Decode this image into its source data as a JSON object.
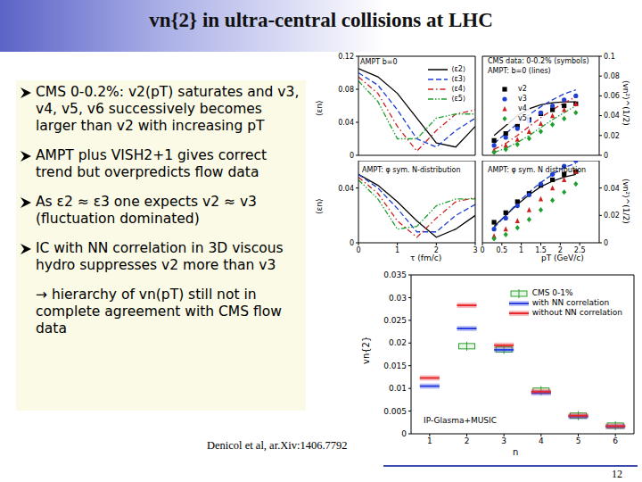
{
  "title": "vn{2} in ultra-central collisions at LHC",
  "bullets": [
    "CMS 0-0.2%: v2(pT) saturates and v3, v4, v5, v6 successively becomes larger than v2 with increasing pT",
    "AMPT plus VISH2+1 gives correct trend but overpredicts flow data",
    "As ε2 ≈ ε3 one expects v2 ≈ v3 (fluctuation dominated)",
    "IC with NN correlation in 3D viscous hydro suppresses v2 more than v3"
  ],
  "conclusion": "→ hierarchy of vn(pT) still not in complete agreement with CMS flow data",
  "citation": "Denicol et al, ar.Xiv:1406.7792",
  "page": "12",
  "chart_data": [
    {
      "type": "line",
      "annotations": [
        "AMPT b=0"
      ],
      "y_label": "⟨εn⟩",
      "x": [
        0,
        0.5,
        1,
        1.5,
        2,
        2.5,
        3
      ],
      "xlim": [
        0,
        3
      ],
      "xticks": [
        0,
        1,
        2,
        3
      ],
      "ylim": [
        0,
        0.12
      ],
      "yticks": [
        0,
        0.04,
        0.08,
        0.12
      ],
      "tick_labels": "y",
      "legend": "upper right",
      "series": [
        {
          "name": "⟨ε2⟩",
          "color": "#000000",
          "line_style": "solid",
          "values": [
            0.105,
            0.095,
            0.075,
            0.045,
            0.015,
            0.01,
            0.035
          ]
        },
        {
          "name": "⟨ε3⟩",
          "color": "#1f3fd0",
          "line_style": "dashed",
          "values": [
            0.1,
            0.085,
            0.055,
            0.02,
            0.01,
            0.03,
            0.045
          ]
        },
        {
          "name": "⟨ε4⟩",
          "color": "#d01f1f",
          "line_style": "dashdot",
          "values": [
            0.095,
            0.075,
            0.035,
            0.005,
            0.03,
            0.05,
            0.055
          ]
        },
        {
          "name": "⟨ε5⟩",
          "color": "#1f9f2f",
          "line_style": "dashdotdot",
          "values": [
            0.09,
            0.065,
            0.02,
            0.02,
            0.045,
            0.05,
            0.05
          ]
        }
      ]
    },
    {
      "type": "line",
      "annotations": [
        "CMS data: 0-0.2% (symbols)",
        "AMPT: b=0 (lines)"
      ],
      "y_label": "⟨vn²⟩^(1/2)",
      "x": [
        0.3,
        0.6,
        0.9,
        1.2,
        1.5,
        1.8,
        2.1,
        2.4
      ],
      "xlim": [
        0,
        3
      ],
      "xticks": [
        0,
        0.5,
        1,
        1.5,
        2,
        2.5
      ],
      "ylim": [
        0,
        0.1
      ],
      "yticks": [
        0,
        0.02,
        0.04,
        0.06,
        0.08,
        0.1
      ],
      "tick_labels": "y",
      "legend": "upper left",
      "series": [
        {
          "name": "v2",
          "type": "scatter",
          "marker": "square",
          "color": "#000000",
          "values": [
            0.015,
            0.022,
            0.03,
            0.036,
            0.042,
            0.046,
            0.05,
            0.052
          ]
        },
        {
          "name": "v3",
          "type": "scatter",
          "marker": "circle",
          "color": "#1f3fd0",
          "values": [
            0.01,
            0.018,
            0.027,
            0.035,
            0.043,
            0.05,
            0.056,
            0.06
          ]
        },
        {
          "name": "v4",
          "type": "scatter",
          "marker": "triangle",
          "color": "#d01f1f",
          "values": [
            0.005,
            0.01,
            0.016,
            0.024,
            0.032,
            0.04,
            0.046,
            0.052
          ]
        },
        {
          "name": "v5",
          "type": "scatter",
          "marker": "diamond",
          "color": "#1f9f2f",
          "values": [
            0.003,
            0.006,
            0.011,
            0.017,
            0.024,
            0.031,
            0.037,
            0.043
          ]
        },
        {
          "type": "line",
          "color": "#000000",
          "line_style": "solid",
          "values": [
            0.02,
            0.03,
            0.04,
            0.047,
            0.051,
            0.053,
            0.054,
            0.054
          ]
        },
        {
          "type": "line",
          "color": "#1f3fd0",
          "line_style": "dashed",
          "values": [
            0.012,
            0.022,
            0.032,
            0.041,
            0.049,
            0.056,
            0.062,
            0.066
          ]
        },
        {
          "type": "line",
          "color": "#d01f1f",
          "line_style": "dashdot",
          "values": [
            0.006,
            0.012,
            0.02,
            0.029,
            0.038,
            0.046,
            0.053,
            0.059
          ]
        },
        {
          "type": "line",
          "color": "#1f9f2f",
          "line_style": "dashdotdot",
          "values": [
            0.003,
            0.007,
            0.013,
            0.02,
            0.028,
            0.036,
            0.043,
            0.05
          ]
        }
      ]
    },
    {
      "type": "line",
      "annotations": [
        "AMPT: φ sym. N-distribution"
      ],
      "x_label": "τ (fm/c)",
      "y_label": "⟨εn⟩",
      "x": [
        0,
        0.5,
        1,
        1.5,
        2,
        2.5,
        3
      ],
      "xlim": [
        0,
        3
      ],
      "xticks": [
        0,
        1,
        2,
        3
      ],
      "ylim": [
        0,
        0.06
      ],
      "yticks": [
        0,
        0.04
      ],
      "series": [
        {
          "color": "#000000",
          "line_style": "solid",
          "values": [
            0.05,
            0.042,
            0.03,
            0.016,
            0.004,
            0.01,
            0.02
          ]
        },
        {
          "color": "#1f3fd0",
          "line_style": "dashed",
          "values": [
            0.05,
            0.04,
            0.025,
            0.008,
            0.008,
            0.02,
            0.028
          ]
        },
        {
          "color": "#d01f1f",
          "line_style": "dashdot",
          "values": [
            0.048,
            0.036,
            0.016,
            0.004,
            0.018,
            0.03,
            0.033
          ]
        },
        {
          "color": "#1f9f2f",
          "line_style": "dashdotdot",
          "values": [
            0.046,
            0.032,
            0.01,
            0.012,
            0.027,
            0.032,
            0.032
          ]
        }
      ]
    },
    {
      "type": "line",
      "annotations": [
        "AMPT: φ sym. N distribution"
      ],
      "x_label": "pT (GeV/c)",
      "y_label": "⟨vn²⟩^(1/2)",
      "x": [
        0.3,
        0.6,
        0.9,
        1.2,
        1.5,
        1.8,
        2.1,
        2.4
      ],
      "xlim": [
        0,
        3
      ],
      "xticks": [
        0,
        0.5,
        1,
        1.5,
        2,
        2.5
      ],
      "ylim": [
        0,
        0.06
      ],
      "yticks": [
        0,
        0.02,
        0.04
      ],
      "series": [
        {
          "type": "scatter",
          "marker": "square",
          "color": "#000000",
          "values": [
            0.015,
            0.022,
            0.03,
            0.036,
            0.042,
            0.046,
            0.05,
            0.052
          ]
        },
        {
          "type": "scatter",
          "marker": "circle",
          "color": "#1f3fd0",
          "values": [
            0.01,
            0.018,
            0.027,
            0.035,
            0.043,
            0.05,
            0.056,
            0.06
          ]
        },
        {
          "type": "scatter",
          "marker": "triangle",
          "color": "#d01f1f",
          "values": [
            0.005,
            0.01,
            0.016,
            0.024,
            0.032,
            0.04,
            0.046,
            0.052
          ]
        },
        {
          "type": "scatter",
          "marker": "diamond",
          "color": "#1f9f2f",
          "values": [
            0.003,
            0.006,
            0.011,
            0.017,
            0.024,
            0.031,
            0.037,
            0.043
          ]
        },
        {
          "type": "line",
          "color": "#000000",
          "line_style": "solid",
          "values": [
            0.012,
            0.02,
            0.028,
            0.035,
            0.041,
            0.045,
            0.048,
            0.05
          ]
        },
        {
          "type": "line",
          "color": "#1f3fd0",
          "line_style": "dashed",
          "values": [
            0.011,
            0.02,
            0.029,
            0.037,
            0.044,
            0.05,
            0.055,
            0.058
          ]
        }
      ]
    },
    {
      "type": "scatter",
      "annotations": [
        "IP-Glasma+MUSIC"
      ],
      "x_label": "n",
      "y_label": "vn{2}",
      "x": [
        1,
        2,
        3,
        4,
        5,
        6
      ],
      "xlim": [
        0.5,
        6.5
      ],
      "xticks": [
        1,
        2,
        3,
        4,
        5,
        6
      ],
      "ylim": [
        0,
        0.035
      ],
      "yticks": [
        0,
        0.005,
        0.01,
        0.015,
        0.02,
        0.025,
        0.03,
        0.035
      ],
      "legend": "upper right",
      "series": [
        {
          "name": "CMS 0-1%",
          "marker": "open_band",
          "color": "#2ca02c",
          "values": [
            null,
            0.0193,
            0.0186,
            0.0095,
            0.004,
            0.0018
          ]
        },
        {
          "name": "with NN correlation",
          "marker": "band",
          "color": "#2b3fe0",
          "values": [
            0.0105,
            0.0232,
            0.0185,
            0.009,
            0.0038,
            0.0016
          ]
        },
        {
          "name": "without NN correlation",
          "marker": "band",
          "color": "#e8262b",
          "values": [
            0.0123,
            0.0283,
            0.0195,
            0.0093,
            0.004,
            0.0017
          ]
        }
      ]
    }
  ]
}
